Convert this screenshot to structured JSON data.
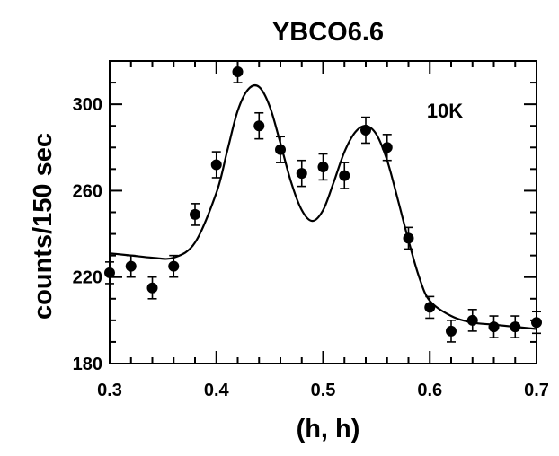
{
  "chart_data": {
    "type": "scatter",
    "title": "YBCO6.6",
    "xlabel": "(h, h)",
    "ylabel": "counts/150 sec",
    "annotation": "10K",
    "xlim": [
      0.3,
      0.7
    ],
    "ylim": [
      180,
      320
    ],
    "xticks": [
      0.3,
      0.4,
      0.5,
      0.6,
      0.7
    ],
    "xtick_labels": [
      "0.3",
      "0.4",
      "0.5",
      "0.6",
      "0.7"
    ],
    "yticks": [
      180,
      220,
      260,
      300
    ],
    "ytick_labels": [
      "180",
      "220",
      "260",
      "300"
    ],
    "grid": false,
    "series": [
      {
        "kind": "points_with_errorbars",
        "x": [
          0.3,
          0.32,
          0.34,
          0.36,
          0.38,
          0.4,
          0.42,
          0.44,
          0.46,
          0.48,
          0.5,
          0.52,
          0.54,
          0.56,
          0.58,
          0.6,
          0.62,
          0.64,
          0.66,
          0.68,
          0.7
        ],
        "y": [
          222,
          225,
          215,
          225,
          249,
          272,
          315,
          290,
          279,
          268,
          271,
          267,
          288,
          280,
          238,
          206,
          195,
          200,
          197,
          197,
          199
        ],
        "err": [
          5,
          5,
          5,
          5,
          5,
          6,
          5,
          6,
          6,
          6,
          6,
          6,
          6,
          6,
          5,
          5,
          5,
          5,
          5,
          5,
          5
        ]
      },
      {
        "kind": "fit_curve",
        "x": [
          0.3,
          0.32,
          0.34,
          0.36,
          0.38,
          0.4,
          0.41,
          0.42,
          0.43,
          0.44,
          0.45,
          0.46,
          0.47,
          0.48,
          0.49,
          0.5,
          0.51,
          0.52,
          0.53,
          0.54,
          0.55,
          0.56,
          0.57,
          0.58,
          0.59,
          0.6,
          0.62,
          0.64,
          0.66,
          0.68,
          0.7
        ],
        "y": [
          231,
          230,
          229,
          229,
          236,
          259,
          278,
          297,
          307,
          308,
          299,
          282,
          264,
          251,
          246,
          251,
          264,
          278,
          287,
          290,
          286,
          274,
          256,
          237,
          220,
          209,
          202,
          199,
          198,
          197,
          196
        ]
      }
    ]
  }
}
